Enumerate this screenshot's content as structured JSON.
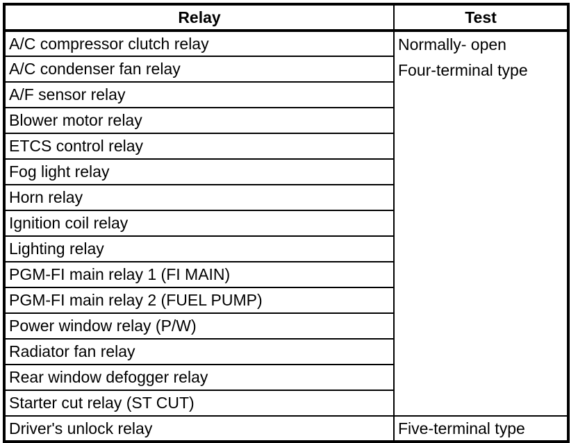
{
  "table": {
    "columns": [
      {
        "label": "Relay"
      },
      {
        "label": "Test"
      }
    ],
    "relays": [
      "A/C compressor clutch relay",
      "A/C condenser fan relay",
      "A/F sensor relay",
      "Blower motor relay",
      "ETCS control relay",
      "Fog light relay",
      "Horn relay",
      "Ignition coil relay",
      "Lighting relay",
      "PGM-FI main relay 1 (FI MAIN)",
      "PGM-FI main relay 2 (FUEL PUMP)",
      "Power window relay (P/W)",
      "Radiator fan relay",
      "Rear window defogger relay",
      "Starter cut relay (ST CUT)"
    ],
    "group_test": {
      "line1": "Normally- open",
      "line2": "Four-terminal type"
    },
    "last_row": {
      "relay": "Driver's unlock relay",
      "test": "Five-terminal type"
    },
    "colors": {
      "border": "#000000",
      "background": "#ffffff",
      "text": "#000000"
    }
  }
}
